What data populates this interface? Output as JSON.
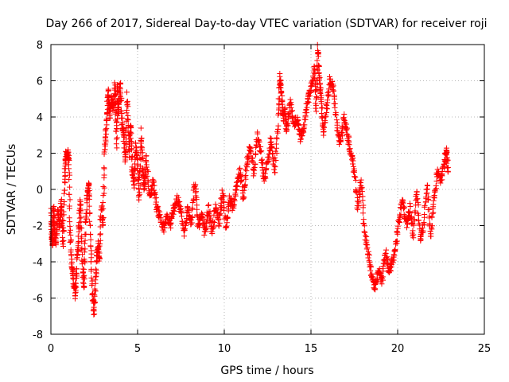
{
  "chart_data": {
    "type": "scatter",
    "title": "Day 266 of 2017, Sidereal Day-to-day VTEC variation (SDTVAR) for receiver roji",
    "xlabel": "GPS time / hours",
    "ylabel": "SDTVAR / TECUs",
    "xlim": [
      0,
      25
    ],
    "ylim": [
      -8,
      8
    ],
    "xticks": [
      0,
      5,
      10,
      15,
      20,
      25
    ],
    "yticks": [
      -8,
      -6,
      -4,
      -2,
      0,
      2,
      4,
      6,
      8
    ],
    "grid": true,
    "marker": "+",
    "color": "#ff0000",
    "series": [
      {
        "name": "SDTVAR",
        "trace": [
          [
            0.0,
            -1.2
          ],
          [
            0.05,
            -2.6
          ],
          [
            0.1,
            -3.0
          ],
          [
            0.15,
            -1.0
          ],
          [
            0.2,
            -2.2
          ],
          [
            0.3,
            -3.0
          ],
          [
            0.4,
            -1.2
          ],
          [
            0.5,
            -2.0
          ],
          [
            0.6,
            -0.8
          ],
          [
            0.7,
            -3.2
          ],
          [
            0.8,
            0.4
          ],
          [
            0.85,
            1.8
          ],
          [
            0.95,
            2.0
          ],
          [
            1.05,
            1.8
          ],
          [
            1.1,
            -2.0
          ],
          [
            1.2,
            -4.2
          ],
          [
            1.3,
            -5.0
          ],
          [
            1.4,
            -5.8
          ],
          [
            1.5,
            -4.2
          ],
          [
            1.6,
            -2.5
          ],
          [
            1.7,
            -0.5
          ],
          [
            1.8,
            -4.0
          ],
          [
            1.9,
            -5.5
          ],
          [
            2.0,
            -2.0
          ],
          [
            2.1,
            0.0
          ],
          [
            2.2,
            0.2
          ],
          [
            2.3,
            -3.0
          ],
          [
            2.4,
            -5.8
          ],
          [
            2.5,
            -6.7
          ],
          [
            2.6,
            -4.6
          ],
          [
            2.7,
            -3.0
          ],
          [
            2.8,
            -4.0
          ],
          [
            2.9,
            -1.0
          ],
          [
            3.0,
            -2.0
          ],
          [
            3.1,
            2.0
          ],
          [
            3.2,
            3.5
          ],
          [
            3.3,
            5.5
          ],
          [
            3.4,
            4.0
          ],
          [
            3.5,
            5.0
          ],
          [
            3.6,
            4.5
          ],
          [
            3.7,
            5.8
          ],
          [
            3.8,
            2.5
          ],
          [
            3.85,
            5.8
          ],
          [
            3.9,
            4.2
          ],
          [
            4.0,
            6.0
          ],
          [
            4.1,
            3.8
          ],
          [
            4.2,
            3.0
          ],
          [
            4.3,
            1.5
          ],
          [
            4.4,
            5.2
          ],
          [
            4.5,
            2.0
          ],
          [
            4.6,
            3.5
          ],
          [
            4.7,
            1.0
          ],
          [
            4.8,
            0.2
          ],
          [
            4.9,
            2.5
          ],
          [
            5.0,
            1.5
          ],
          [
            5.1,
            -0.5
          ],
          [
            5.2,
            3.2
          ],
          [
            5.3,
            1.0
          ],
          [
            5.4,
            0.0
          ],
          [
            5.5,
            1.8
          ],
          [
            5.7,
            -0.5
          ],
          [
            5.9,
            0.5
          ],
          [
            6.1,
            -1.0
          ],
          [
            6.3,
            -1.5
          ],
          [
            6.5,
            -2.2
          ],
          [
            6.7,
            -1.5
          ],
          [
            6.9,
            -2.0
          ],
          [
            7.1,
            -1.0
          ],
          [
            7.3,
            -0.5
          ],
          [
            7.5,
            -1.2
          ],
          [
            7.7,
            -2.5
          ],
          [
            7.9,
            -1.0
          ],
          [
            8.1,
            -1.8
          ],
          [
            8.3,
            0.4
          ],
          [
            8.5,
            -2.0
          ],
          [
            8.7,
            -1.5
          ],
          [
            8.9,
            -2.4
          ],
          [
            9.1,
            -1.0
          ],
          [
            9.3,
            -2.5
          ],
          [
            9.5,
            -1.0
          ],
          [
            9.7,
            -1.8
          ],
          [
            9.9,
            0.0
          ],
          [
            10.1,
            -2.2
          ],
          [
            10.3,
            -0.5
          ],
          [
            10.5,
            -1.0
          ],
          [
            10.7,
            0.0
          ],
          [
            10.9,
            1.0
          ],
          [
            11.1,
            -0.5
          ],
          [
            11.3,
            1.5
          ],
          [
            11.5,
            2.5
          ],
          [
            11.7,
            0.8
          ],
          [
            11.9,
            3.0
          ],
          [
            12.1,
            2.0
          ],
          [
            12.3,
            0.5
          ],
          [
            12.5,
            1.5
          ],
          [
            12.7,
            2.8
          ],
          [
            12.9,
            1.0
          ],
          [
            13.1,
            3.5
          ],
          [
            13.2,
            6.2
          ],
          [
            13.3,
            5.2
          ],
          [
            13.4,
            3.8
          ],
          [
            13.5,
            4.5
          ],
          [
            13.6,
            3.2
          ],
          [
            13.8,
            4.8
          ],
          [
            14.0,
            3.5
          ],
          [
            14.2,
            4.0
          ],
          [
            14.4,
            2.8
          ],
          [
            14.6,
            3.5
          ],
          [
            14.8,
            4.8
          ],
          [
            15.0,
            5.5
          ],
          [
            15.2,
            6.8
          ],
          [
            15.3,
            4.5
          ],
          [
            15.4,
            7.8
          ],
          [
            15.5,
            6.0
          ],
          [
            15.6,
            5.0
          ],
          [
            15.7,
            3.0
          ],
          [
            15.9,
            4.5
          ],
          [
            16.1,
            6.0
          ],
          [
            16.3,
            5.5
          ],
          [
            16.5,
            3.5
          ],
          [
            16.7,
            2.5
          ],
          [
            16.9,
            4.0
          ],
          [
            17.1,
            3.0
          ],
          [
            17.3,
            2.0
          ],
          [
            17.5,
            1.0
          ],
          [
            17.7,
            -1.0
          ],
          [
            17.9,
            0.5
          ],
          [
            18.1,
            -2.5
          ],
          [
            18.3,
            -3.5
          ],
          [
            18.5,
            -4.8
          ],
          [
            18.7,
            -5.5
          ],
          [
            18.9,
            -4.5
          ],
          [
            19.1,
            -5.0
          ],
          [
            19.3,
            -3.5
          ],
          [
            19.5,
            -4.5
          ],
          [
            19.7,
            -4.0
          ],
          [
            19.9,
            -3.2
          ],
          [
            20.1,
            -1.5
          ],
          [
            20.3,
            -0.5
          ],
          [
            20.5,
            -2.0
          ],
          [
            20.7,
            -1.0
          ],
          [
            20.9,
            -2.5
          ],
          [
            21.1,
            0.0
          ],
          [
            21.3,
            -2.8
          ],
          [
            21.5,
            -2.0
          ],
          [
            21.7,
            0.2
          ],
          [
            21.9,
            -2.5
          ],
          [
            22.1,
            -0.5
          ],
          [
            22.3,
            1.0
          ],
          [
            22.5,
            0.5
          ],
          [
            22.7,
            1.5
          ],
          [
            22.8,
            2.3
          ],
          [
            22.9,
            1.0
          ]
        ]
      }
    ]
  }
}
